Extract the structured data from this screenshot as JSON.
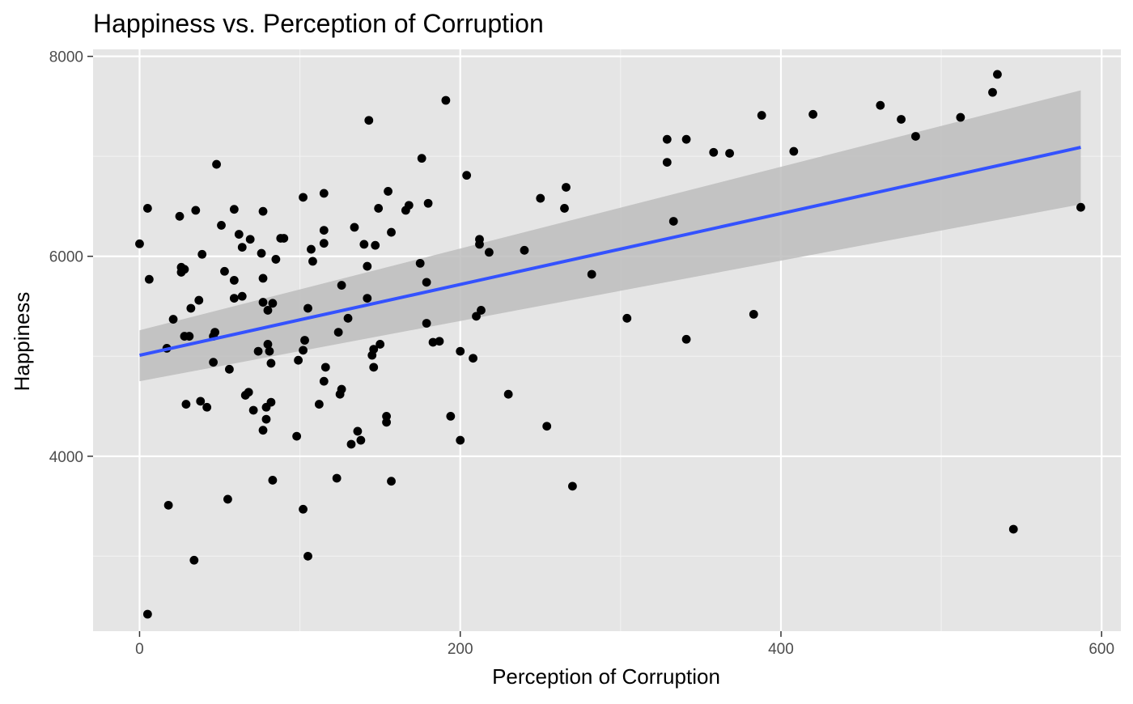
{
  "colors": {
    "panel_background": "#e5e5e5",
    "grid_major": "#ffffff",
    "grid_minor": "#f2f2f2",
    "points": "#000000",
    "trend_line": "#3452ff",
    "confidence_band": "#bdbdbd",
    "tick": "#333333",
    "tick_label": "#4d4d4d"
  },
  "chart_data": {
    "type": "scatter",
    "title": "Happiness vs. Perception of Corruption",
    "xlabel": "Perception of Corruption",
    "ylabel": "Happiness",
    "xlim": [
      -29,
      612
    ],
    "ylim": [
      2250,
      8070
    ],
    "x_ticks": [
      0,
      200,
      400,
      600
    ],
    "y_ticks": [
      4000,
      6000,
      8000
    ],
    "x_tick_labels": [
      "0",
      "200",
      "400",
      "600"
    ],
    "y_tick_labels": [
      "4000",
      "6000",
      "8000"
    ],
    "grid": true,
    "legend": "none",
    "smooth": {
      "method": "linear",
      "x": [
        0,
        587
      ],
      "y": [
        5010,
        7090
      ],
      "ci_lower": [
        4750,
        6520
      ],
      "ci_upper": [
        5260,
        7660
      ]
    },
    "points": [
      {
        "x": 0,
        "y": 6125
      },
      {
        "x": 5,
        "y": 6480
      },
      {
        "x": 6,
        "y": 5770
      },
      {
        "x": 5,
        "y": 2420
      },
      {
        "x": 17,
        "y": 5080
      },
      {
        "x": 18,
        "y": 3510
      },
      {
        "x": 21,
        "y": 5370
      },
      {
        "x": 25,
        "y": 6400
      },
      {
        "x": 26,
        "y": 5840
      },
      {
        "x": 26,
        "y": 5890
      },
      {
        "x": 28,
        "y": 5870
      },
      {
        "x": 28,
        "y": 5200
      },
      {
        "x": 29,
        "y": 4520
      },
      {
        "x": 31,
        "y": 5200
      },
      {
        "x": 32,
        "y": 5480
      },
      {
        "x": 34,
        "y": 2960
      },
      {
        "x": 35,
        "y": 6460
      },
      {
        "x": 37,
        "y": 5560
      },
      {
        "x": 38,
        "y": 4550
      },
      {
        "x": 39,
        "y": 6020
      },
      {
        "x": 42,
        "y": 4490
      },
      {
        "x": 46,
        "y": 4940
      },
      {
        "x": 46,
        "y": 5200
      },
      {
        "x": 47,
        "y": 5240
      },
      {
        "x": 48,
        "y": 6920
      },
      {
        "x": 51,
        "y": 6310
      },
      {
        "x": 53,
        "y": 5850
      },
      {
        "x": 55,
        "y": 3570
      },
      {
        "x": 56,
        "y": 4870
      },
      {
        "x": 59,
        "y": 6470
      },
      {
        "x": 59,
        "y": 5760
      },
      {
        "x": 59,
        "y": 5580
      },
      {
        "x": 62,
        "y": 6220
      },
      {
        "x": 64,
        "y": 6090
      },
      {
        "x": 64,
        "y": 5600
      },
      {
        "x": 66,
        "y": 4610
      },
      {
        "x": 68,
        "y": 4640
      },
      {
        "x": 69,
        "y": 6170
      },
      {
        "x": 71,
        "y": 4460
      },
      {
        "x": 74,
        "y": 5050
      },
      {
        "x": 76,
        "y": 6030
      },
      {
        "x": 77,
        "y": 6450
      },
      {
        "x": 77,
        "y": 5780
      },
      {
        "x": 77,
        "y": 5540
      },
      {
        "x": 77,
        "y": 4260
      },
      {
        "x": 79,
        "y": 4490
      },
      {
        "x": 79,
        "y": 4370
      },
      {
        "x": 80,
        "y": 5460
      },
      {
        "x": 80,
        "y": 5120
      },
      {
        "x": 81,
        "y": 5050
      },
      {
        "x": 82,
        "y": 4930
      },
      {
        "x": 82,
        "y": 4540
      },
      {
        "x": 83,
        "y": 5530
      },
      {
        "x": 83,
        "y": 3760
      },
      {
        "x": 85,
        "y": 5970
      },
      {
        "x": 88,
        "y": 6180
      },
      {
        "x": 90,
        "y": 6180
      },
      {
        "x": 98,
        "y": 4200
      },
      {
        "x": 99,
        "y": 4960
      },
      {
        "x": 102,
        "y": 6590
      },
      {
        "x": 102,
        "y": 5060
      },
      {
        "x": 103,
        "y": 5160
      },
      {
        "x": 102,
        "y": 3470
      },
      {
        "x": 105,
        "y": 5480
      },
      {
        "x": 105,
        "y": 3000
      },
      {
        "x": 107,
        "y": 6070
      },
      {
        "x": 108,
        "y": 5950
      },
      {
        "x": 112,
        "y": 4520
      },
      {
        "x": 115,
        "y": 6630
      },
      {
        "x": 115,
        "y": 6260
      },
      {
        "x": 115,
        "y": 6130
      },
      {
        "x": 115,
        "y": 4750
      },
      {
        "x": 116,
        "y": 4890
      },
      {
        "x": 123,
        "y": 3780
      },
      {
        "x": 124,
        "y": 5240
      },
      {
        "x": 125,
        "y": 4620
      },
      {
        "x": 126,
        "y": 4670
      },
      {
        "x": 126,
        "y": 5710
      },
      {
        "x": 130,
        "y": 5380
      },
      {
        "x": 132,
        "y": 4120
      },
      {
        "x": 134,
        "y": 6290
      },
      {
        "x": 136,
        "y": 4250
      },
      {
        "x": 138,
        "y": 4160
      },
      {
        "x": 140,
        "y": 6120
      },
      {
        "x": 142,
        "y": 5900
      },
      {
        "x": 142,
        "y": 5580
      },
      {
        "x": 143,
        "y": 7360
      },
      {
        "x": 145,
        "y": 5010
      },
      {
        "x": 146,
        "y": 4890
      },
      {
        "x": 146,
        "y": 5070
      },
      {
        "x": 147,
        "y": 6110
      },
      {
        "x": 149,
        "y": 6480
      },
      {
        "x": 150,
        "y": 5120
      },
      {
        "x": 154,
        "y": 4340
      },
      {
        "x": 154,
        "y": 4400
      },
      {
        "x": 155,
        "y": 6650
      },
      {
        "x": 157,
        "y": 6240
      },
      {
        "x": 157,
        "y": 3750
      },
      {
        "x": 166,
        "y": 6460
      },
      {
        "x": 168,
        "y": 6510
      },
      {
        "x": 175,
        "y": 5930
      },
      {
        "x": 176,
        "y": 6980
      },
      {
        "x": 179,
        "y": 5740
      },
      {
        "x": 179,
        "y": 5330
      },
      {
        "x": 180,
        "y": 6530
      },
      {
        "x": 183,
        "y": 5140
      },
      {
        "x": 187,
        "y": 5150
      },
      {
        "x": 191,
        "y": 7560
      },
      {
        "x": 194,
        "y": 4400
      },
      {
        "x": 200,
        "y": 5050
      },
      {
        "x": 200,
        "y": 4160
      },
      {
        "x": 204,
        "y": 6810
      },
      {
        "x": 208,
        "y": 4980
      },
      {
        "x": 210,
        "y": 5400
      },
      {
        "x": 212,
        "y": 6170
      },
      {
        "x": 212,
        "y": 6120
      },
      {
        "x": 213,
        "y": 5460
      },
      {
        "x": 218,
        "y": 6040
      },
      {
        "x": 230,
        "y": 4620
      },
      {
        "x": 240,
        "y": 6060
      },
      {
        "x": 250,
        "y": 6580
      },
      {
        "x": 254,
        "y": 4300
      },
      {
        "x": 265,
        "y": 6480
      },
      {
        "x": 266,
        "y": 6690
      },
      {
        "x": 270,
        "y": 3700
      },
      {
        "x": 282,
        "y": 5820
      },
      {
        "x": 304,
        "y": 5380
      },
      {
        "x": 329,
        "y": 7170
      },
      {
        "x": 329,
        "y": 6940
      },
      {
        "x": 333,
        "y": 6350
      },
      {
        "x": 341,
        "y": 7170
      },
      {
        "x": 341,
        "y": 5170
      },
      {
        "x": 358,
        "y": 7040
      },
      {
        "x": 368,
        "y": 7030
      },
      {
        "x": 383,
        "y": 5420
      },
      {
        "x": 388,
        "y": 7410
      },
      {
        "x": 408,
        "y": 7050
      },
      {
        "x": 420,
        "y": 7420
      },
      {
        "x": 462,
        "y": 7510
      },
      {
        "x": 475,
        "y": 7370
      },
      {
        "x": 484,
        "y": 7200
      },
      {
        "x": 512,
        "y": 7390
      },
      {
        "x": 532,
        "y": 7640
      },
      {
        "x": 535,
        "y": 7820
      },
      {
        "x": 545,
        "y": 3270
      },
      {
        "x": 587,
        "y": 6490
      }
    ]
  }
}
